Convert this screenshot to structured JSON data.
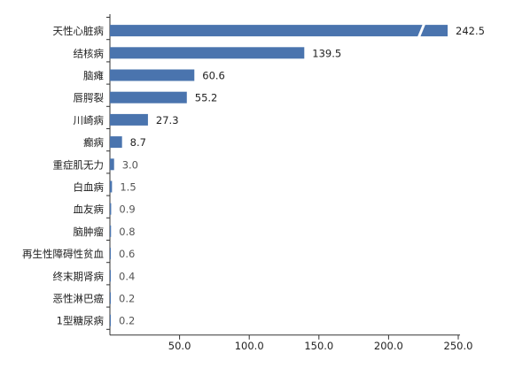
{
  "chart_data": {
    "type": "bar",
    "orientation": "horizontal",
    "title": "",
    "xlabel": "",
    "ylabel": "",
    "categories": [
      "天性心脏病",
      "结核病",
      "脑瘫",
      "唇腭裂",
      "川崎病",
      "癫病",
      "重症肌无力",
      "白血病",
      "血友病",
      "脑肿瘤",
      "再生性障碍性贫血",
      "终末期肾病",
      "恶性淋巴癌",
      "1型糖尿病"
    ],
    "values": [
      242.5,
      139.5,
      60.6,
      55.2,
      27.3,
      8.7,
      3.0,
      1.5,
      0.9,
      0.8,
      0.6,
      0.4,
      0.2,
      0.2
    ],
    "value_labels": [
      "242.5",
      "139.5",
      "60.6",
      "55.2",
      "27.3",
      "8.7",
      "3.0",
      "1.5",
      "0.9",
      "0.8",
      "0.6",
      "0.4",
      "0.2",
      "0.2"
    ],
    "xlim": [
      0,
      250
    ],
    "xticks": [
      50,
      100,
      150,
      200,
      250
    ],
    "xtick_labels": [
      "50.0",
      "100.0",
      "150.0",
      "200.0",
      "250.0"
    ],
    "axis_break_on_first_bar": true,
    "grid": false,
    "legend": "none",
    "bar_color": "#4a74ae",
    "label_color_dark": "#222222",
    "label_color_light": "#555555"
  }
}
